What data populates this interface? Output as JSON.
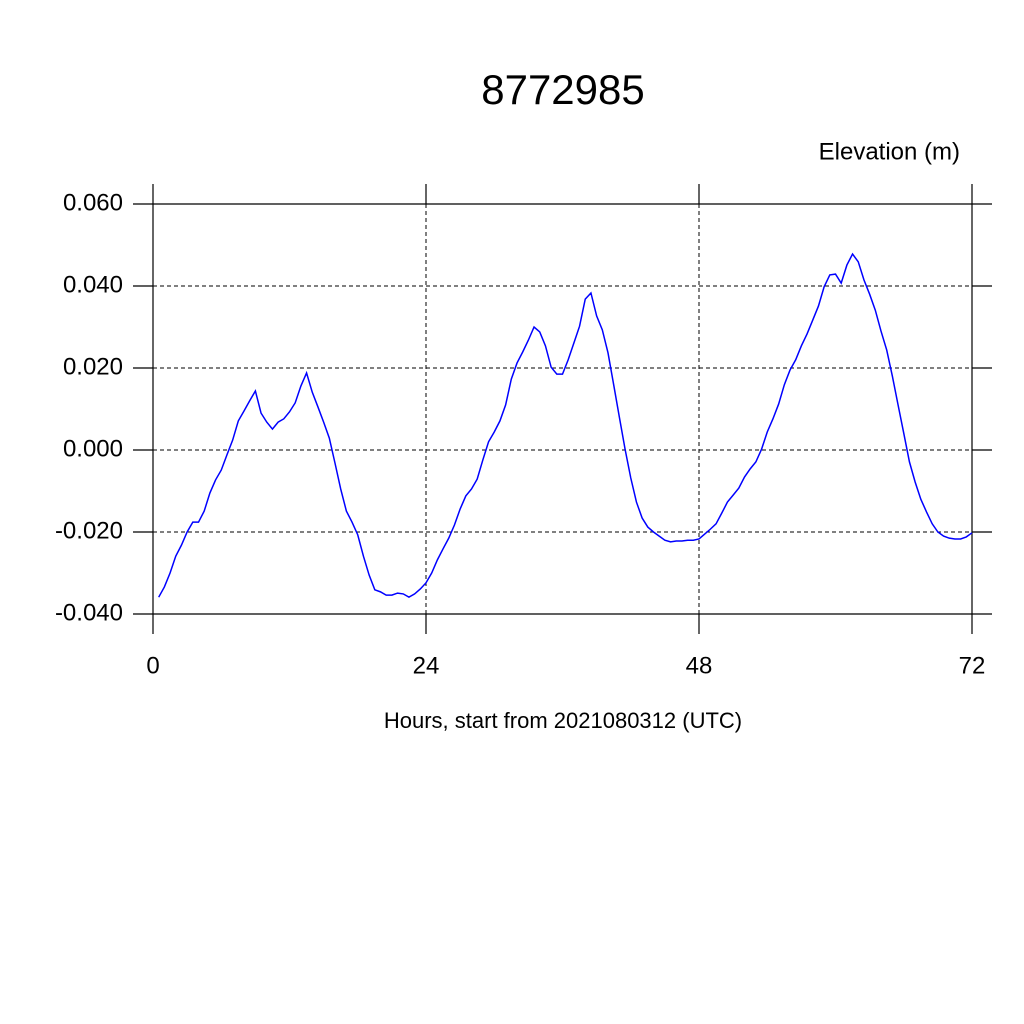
{
  "chart_data": {
    "type": "line",
    "title": "8772985",
    "y_label": "Elevation (m)",
    "x_label": "Hours, start from 2021080312 (UTC)",
    "xlim": [
      0,
      72
    ],
    "xticks": [
      0,
      24,
      48,
      72
    ],
    "ylim": [
      -0.04,
      0.06
    ],
    "yticks": [
      {
        "value": 0.06,
        "label": "0.060"
      },
      {
        "value": 0.04,
        "label": "0.040"
      },
      {
        "value": 0.02,
        "label": "0.020"
      },
      {
        "value": 0,
        "label": "0.000"
      },
      {
        "value": -0.02,
        "label": "-0.020"
      },
      {
        "value": -0.04,
        "label": "-0.040"
      }
    ],
    "grid": true,
    "x": [
      0.5,
      1,
      1.5,
      2,
      2.5,
      3,
      3.5,
      4,
      4.5,
      5,
      5.5,
      6,
      6.5,
      7,
      7.5,
      8,
      8.5,
      9,
      9.5,
      10,
      10.5,
      11,
      11.5,
      12,
      12.5,
      13,
      13.5,
      14,
      14.5,
      15,
      15.5,
      16,
      16.5,
      17,
      17.5,
      18,
      18.5,
      19,
      19.5,
      20,
      20.5,
      21,
      21.5,
      22,
      22.5,
      23,
      23.5,
      24,
      24.5,
      25,
      25.5,
      26,
      26.5,
      27,
      27.5,
      28,
      28.5,
      29,
      29.5,
      30,
      30.5,
      31,
      31.5,
      32,
      32.5,
      33,
      33.5,
      34,
      34.5,
      35,
      35.5,
      36,
      36.5,
      37,
      37.5,
      38,
      38.5,
      39,
      39.5,
      40,
      40.5,
      41,
      41.5,
      42,
      42.5,
      43,
      43.5,
      44,
      44.5,
      45,
      45.5,
      46,
      46.5,
      47,
      47.5,
      48,
      48.5,
      49,
      49.5,
      50,
      50.5,
      51,
      51.5,
      52,
      52.5,
      53,
      53.5,
      54,
      54.5,
      55,
      55.5,
      56,
      56.5,
      57,
      57.5,
      58,
      58.5,
      59,
      59.5,
      60,
      60.5,
      61,
      61.5,
      62,
      62.5,
      63,
      63.5,
      64,
      64.5,
      65,
      65.5,
      66,
      66.5,
      67,
      67.5,
      68,
      68.5,
      69,
      69.5,
      70,
      70.5,
      71,
      71.5,
      72
    ],
    "series": [
      {
        "name": "Elevation",
        "color": "#0000ff",
        "values": [
          -0.0359,
          -0.0334,
          -0.03,
          -0.0259,
          -0.0232,
          -0.02,
          -0.0176,
          -0.0176,
          -0.0149,
          -0.0105,
          -0.0073,
          -0.0049,
          -0.0012,
          0.0024,
          0.0071,
          0.0095,
          0.012,
          0.0144,
          0.009,
          0.0068,
          0.0051,
          0.0068,
          0.0076,
          0.0093,
          0.0115,
          0.0156,
          0.0188,
          0.0141,
          0.0105,
          0.0068,
          0.0029,
          -0.0032,
          -0.0095,
          -0.0149,
          -0.0176,
          -0.0207,
          -0.0259,
          -0.0305,
          -0.0341,
          -0.0346,
          -0.0354,
          -0.0354,
          -0.0349,
          -0.0351,
          -0.0359,
          -0.0351,
          -0.0339,
          -0.0324,
          -0.03,
          -0.0268,
          -0.0241,
          -0.0215,
          -0.0183,
          -0.0144,
          -0.0112,
          -0.0095,
          -0.0071,
          -0.0024,
          0.002,
          0.0044,
          0.0071,
          0.011,
          0.0173,
          0.0212,
          0.0239,
          0.0268,
          0.03,
          0.0288,
          0.0254,
          0.0202,
          0.0185,
          0.0185,
          0.022,
          0.0261,
          0.0302,
          0.0368,
          0.0383,
          0.0327,
          0.0293,
          0.0237,
          0.0159,
          0.008,
          0.0002,
          -0.0068,
          -0.0127,
          -0.0166,
          -0.0188,
          -0.02,
          -0.021,
          -0.022,
          -0.0224,
          -0.0222,
          -0.0222,
          -0.022,
          -0.022,
          -0.0217,
          -0.0205,
          -0.0193,
          -0.018,
          -0.0154,
          -0.0127,
          -0.011,
          -0.0093,
          -0.0066,
          -0.0046,
          -0.0029,
          0.0002,
          0.0044,
          0.0076,
          0.0112,
          0.0159,
          0.0195,
          0.022,
          0.0254,
          0.0283,
          0.0317,
          0.0351,
          0.0398,
          0.0427,
          0.0429,
          0.0407,
          0.0451,
          0.0478,
          0.0459,
          0.0415,
          0.038,
          0.0341,
          0.029,
          0.0244,
          0.018,
          0.011,
          0.0041,
          -0.0029,
          -0.0078,
          -0.012,
          -0.0151,
          -0.018,
          -0.02,
          -0.021,
          -0.0215,
          -0.0217,
          -0.0217,
          -0.0212,
          -0.0202
        ]
      }
    ]
  }
}
